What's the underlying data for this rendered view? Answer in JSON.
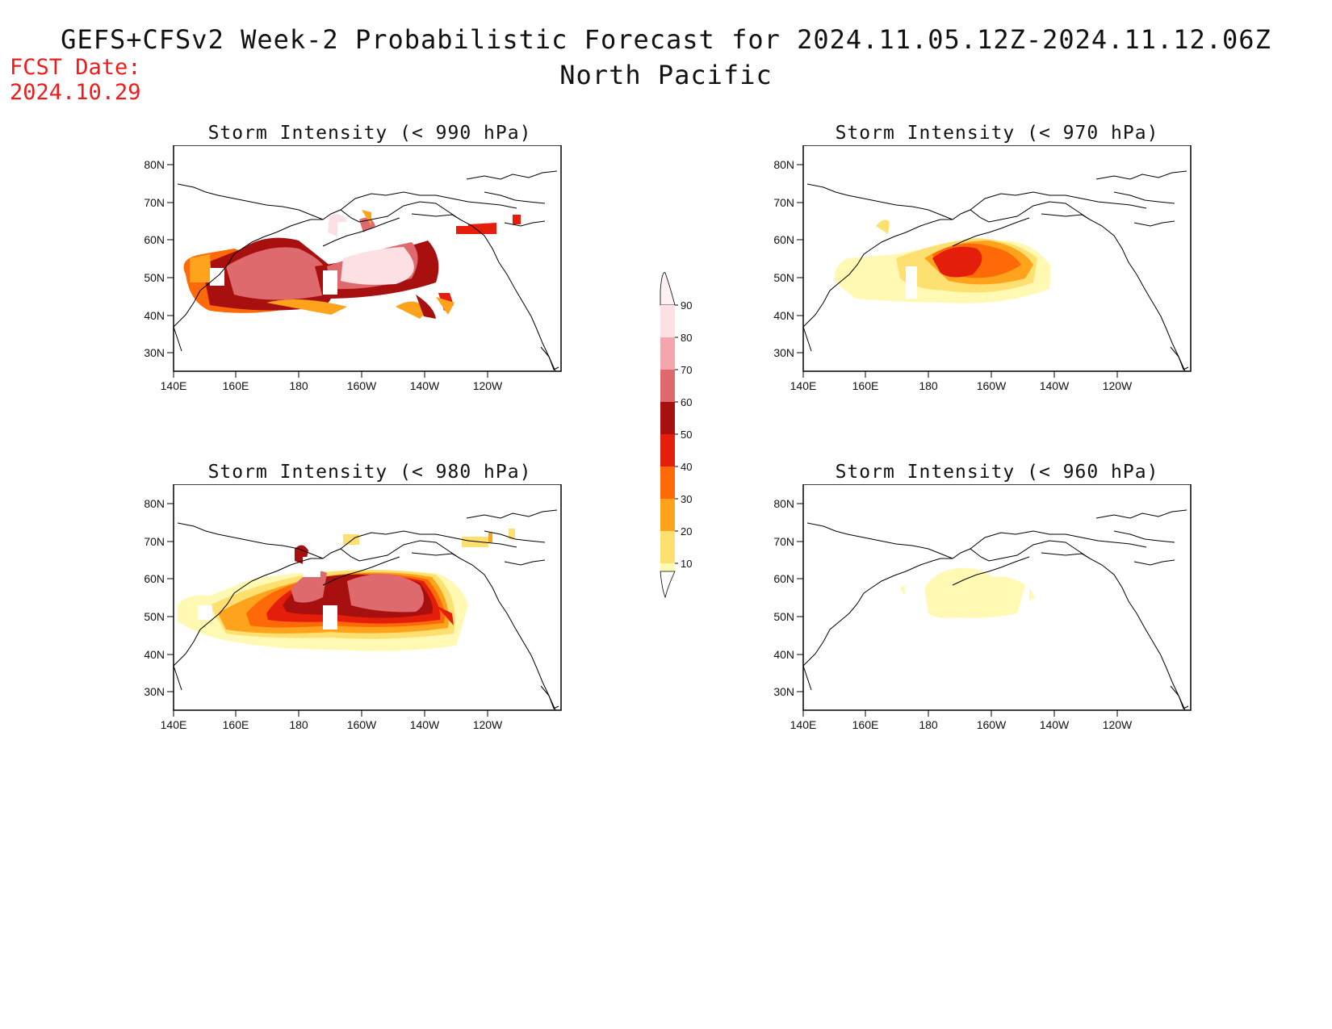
{
  "header": {
    "title_line1": "GEFS+CFSv2 Week-2 Probabilistic Forecast for 2024.11.05.12Z-2024.11.12.06Z",
    "title_line2": "North Pacific",
    "fcst_label": "FCST Date:",
    "fcst_date": "2024.10.29"
  },
  "axes": {
    "lat_ticks": [
      "80N",
      "70N",
      "60N",
      "50N",
      "40N",
      "30N"
    ],
    "lon_ticks": [
      "140E",
      "160E",
      "180",
      "160W",
      "140W",
      "120W"
    ]
  },
  "panels": [
    {
      "title": "Storm Intensity (< 990 hPa)"
    },
    {
      "title": "Storm Intensity (< 970 hPa)"
    },
    {
      "title": "Storm Intensity (< 980 hPa)"
    },
    {
      "title": "Storm Intensity (< 960 hPa)"
    }
  ],
  "colorbar": {
    "labels": [
      "90",
      "80",
      "70",
      "60",
      "50",
      "40",
      "30",
      "20",
      "10"
    ],
    "colors": [
      "#fde0e3",
      "#f4a6ae",
      "#de6a6e",
      "#a80f0f",
      "#e41e0a",
      "#ff6a08",
      "#ffa21c",
      "#fde06f",
      "#fff9b4"
    ]
  }
}
